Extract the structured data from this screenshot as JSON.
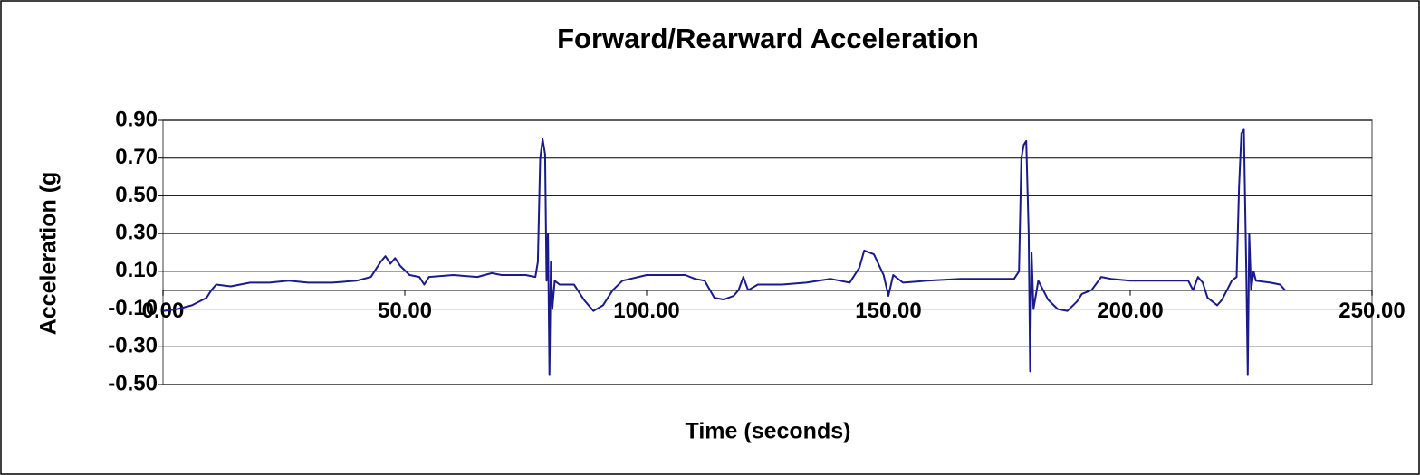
{
  "chart_data": {
    "type": "line",
    "title": "Forward/Rearward Acceleration",
    "x_label": "Time (seconds)",
    "y_label": "Acceleration (g",
    "color": "#1a1a8c",
    "grid": true,
    "xlim": [
      0,
      250
    ],
    "ylim": [
      -0.5,
      0.9
    ],
    "xticks": [
      {
        "value": 0,
        "label": "0.00"
      },
      {
        "value": 50,
        "label": "50.00"
      },
      {
        "value": 100,
        "label": "100.00"
      },
      {
        "value": 150,
        "label": "150.00"
      },
      {
        "value": 200,
        "label": "200.00"
      },
      {
        "value": 250,
        "label": "250.00"
      }
    ],
    "yticks": [
      {
        "value": -0.5,
        "label": "-0.50"
      },
      {
        "value": -0.3,
        "label": "-0.30"
      },
      {
        "value": -0.1,
        "label": "-0.10"
      },
      {
        "value": 0.1,
        "label": "0.10"
      },
      {
        "value": 0.3,
        "label": "0.30"
      },
      {
        "value": 0.5,
        "label": "0.50"
      },
      {
        "value": 0.7,
        "label": "0.70"
      },
      {
        "value": 0.9,
        "label": "0.90"
      }
    ],
    "x": [
      0,
      3,
      6,
      9,
      10,
      11,
      14,
      18,
      22,
      26,
      30,
      35,
      40,
      43,
      45,
      46,
      47,
      48,
      49,
      51,
      53,
      54,
      55,
      60,
      65,
      68,
      70,
      75,
      77,
      77.5,
      78,
      78.5,
      79,
      79.3,
      79.6,
      79.9,
      80.2,
      80.5,
      81,
      82,
      85,
      87,
      89,
      91,
      93,
      95,
      100,
      105,
      108,
      110,
      112,
      114,
      116,
      118,
      119,
      120,
      121,
      123,
      128,
      133,
      138,
      140,
      142,
      144,
      145,
      147,
      149,
      150,
      151,
      153,
      158,
      165,
      170,
      176,
      177,
      177.5,
      178,
      178.5,
      179,
      179.3,
      179.6,
      180,
      181,
      182,
      183,
      185,
      187,
      189,
      190,
      192,
      194,
      196,
      200,
      205,
      210,
      212,
      213,
      214,
      215,
      216,
      218,
      219,
      220,
      221,
      222,
      222.5,
      223,
      223.5,
      224,
      224.3,
      224.6,
      225,
      225.5,
      226,
      229,
      231,
      232
    ],
    "values": [
      -0.11,
      -0.1,
      -0.08,
      -0.04,
      0.0,
      0.03,
      0.02,
      0.04,
      0.04,
      0.05,
      0.04,
      0.04,
      0.05,
      0.07,
      0.15,
      0.18,
      0.14,
      0.17,
      0.13,
      0.08,
      0.07,
      0.03,
      0.07,
      0.08,
      0.07,
      0.09,
      0.08,
      0.08,
      0.07,
      0.15,
      0.7,
      0.8,
      0.72,
      0.05,
      0.3,
      -0.45,
      0.15,
      -0.1,
      0.05,
      0.03,
      0.03,
      -0.05,
      -0.11,
      -0.08,
      0.0,
      0.05,
      0.08,
      0.08,
      0.08,
      0.06,
      0.05,
      -0.04,
      -0.05,
      -0.03,
      0.0,
      0.07,
      0.0,
      0.03,
      0.03,
      0.04,
      0.06,
      0.05,
      0.04,
      0.12,
      0.21,
      0.19,
      0.08,
      -0.03,
      0.08,
      0.04,
      0.05,
      0.06,
      0.06,
      0.06,
      0.1,
      0.7,
      0.77,
      0.79,
      0.3,
      -0.43,
      0.2,
      -0.1,
      0.05,
      0.0,
      -0.05,
      -0.1,
      -0.11,
      -0.06,
      -0.02,
      0.0,
      0.07,
      0.06,
      0.05,
      0.05,
      0.05,
      0.05,
      0.0,
      0.07,
      0.04,
      -0.04,
      -0.08,
      -0.05,
      0.0,
      0.05,
      0.07,
      0.55,
      0.83,
      0.85,
      0.1,
      -0.45,
      0.3,
      0.0,
      0.1,
      0.05,
      0.04,
      0.03,
      0.0
    ]
  }
}
